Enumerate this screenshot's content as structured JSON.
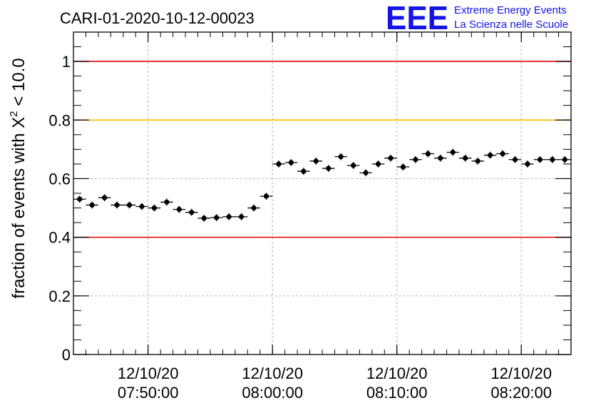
{
  "header": {
    "run_title": "CARI-01-2020-10-12-00023",
    "logo_text": "EEE",
    "logo_line1": "Extreme Energy Events",
    "logo_line2": "La Scienza nelle Scuole"
  },
  "colors": {
    "logo_blue": "#1414e6",
    "red_line": "#e00000",
    "orange_line": "#f5b800",
    "grid": "#b4b4b4",
    "marker": "#000000"
  },
  "chart_data": {
    "type": "scatter",
    "title": "CARI-01-2020-10-12-00023",
    "ylabel_prefix": "fraction of events with X",
    "ylabel_sup": "2",
    "ylabel_suffix": " < 10.0",
    "xlabel": "",
    "x_axis_type": "time",
    "xlim": [
      "07:44:00",
      "08:24:00"
    ],
    "ylim": [
      0,
      1.1
    ],
    "xticks": [
      {
        "x": "07:50:00",
        "date": "12/10/20",
        "time": "07:50:00"
      },
      {
        "x": "08:00:00",
        "date": "12/10/20",
        "time": "08:00:00"
      },
      {
        "x": "08:10:00",
        "date": "12/10/20",
        "time": "08:10:00"
      },
      {
        "x": "08:20:00",
        "date": "12/10/20",
        "time": "08:20:00"
      }
    ],
    "yticks": [
      {
        "value": 0,
        "label": "0"
      },
      {
        "value": 0.2,
        "label": "0.2"
      },
      {
        "value": 0.4,
        "label": "0.4"
      },
      {
        "value": 0.6,
        "label": "0.6"
      },
      {
        "value": 0.8,
        "label": "0.8"
      },
      {
        "value": 1.0,
        "label": "1"
      }
    ],
    "grid": true,
    "reference_lines": [
      {
        "y": 1.0,
        "color": "red"
      },
      {
        "y": 0.8,
        "color": "orange"
      },
      {
        "y": 0.4,
        "color": "red"
      }
    ],
    "series": [
      {
        "x": [
          "07:44:30",
          "07:45:30",
          "07:46:30",
          "07:47:30",
          "07:48:30",
          "07:49:30",
          "07:50:30",
          "07:51:30",
          "07:52:30",
          "07:53:30",
          "07:54:30",
          "07:55:30",
          "07:56:30",
          "07:57:30",
          "07:58:30",
          "07:59:30",
          "08:00:30",
          "08:01:30",
          "08:02:30",
          "08:03:30",
          "08:04:30",
          "08:05:30",
          "08:06:30",
          "08:07:30",
          "08:08:30",
          "08:09:30",
          "08:10:30",
          "08:11:30",
          "08:12:30",
          "08:13:30",
          "08:14:30",
          "08:15:30",
          "08:16:30",
          "08:17:30",
          "08:18:30",
          "08:19:30",
          "08:20:30",
          "08:21:30",
          "08:22:30",
          "08:23:30"
        ],
        "y": [
          0.53,
          0.51,
          0.535,
          0.51,
          0.51,
          0.505,
          0.5,
          0.52,
          0.495,
          0.485,
          0.465,
          0.467,
          0.47,
          0.47,
          0.5,
          0.54,
          0.65,
          0.655,
          0.625,
          0.66,
          0.635,
          0.675,
          0.645,
          0.62,
          0.65,
          0.67,
          0.64,
          0.665,
          0.685,
          0.67,
          0.69,
          0.67,
          0.66,
          0.68,
          0.685,
          0.665,
          0.65,
          0.665,
          0.665,
          0.665
        ],
        "yerr": 0.012
      }
    ]
  }
}
